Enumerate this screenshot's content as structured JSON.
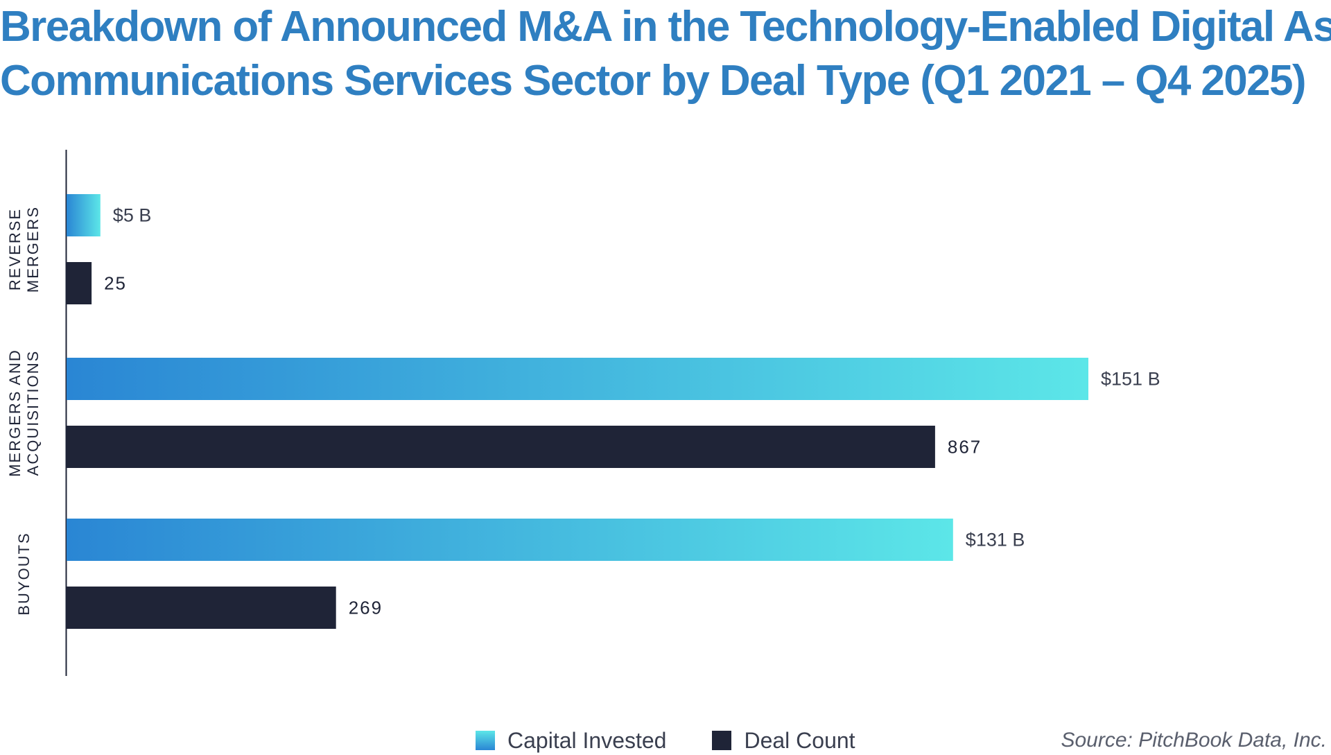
{
  "chart_data": {
    "type": "bar",
    "orientation": "horizontal",
    "title": "Breakdown of Announced M&A in the Technology-Enabled Digital Asset Communications Services Sector by Deal Type (Q1 2021 – Q4 2025)",
    "title_lines": [
      "Breakdown of Announced M&A in the Technology-Enabled Digital Asset",
      "Communications Services Sector by Deal Type (Q1 2021 – Q4 2025)"
    ],
    "categories": [
      {
        "lines": [
          "REVERSE",
          "MERGERS"
        ]
      },
      {
        "lines": [
          "MERGERS AND",
          "ACQUISITIONS"
        ]
      },
      {
        "lines": [
          "BUYOUTS"
        ]
      }
    ],
    "series": [
      {
        "name": "Capital Invested",
        "values": [
          5,
          151,
          131
        ],
        "labels": [
          "$5 B",
          "$151 B",
          "$131 B"
        ],
        "unit": "$B",
        "max": 151
      },
      {
        "name": "Deal Count",
        "values": [
          25,
          867,
          269
        ],
        "labels": [
          "25",
          "867",
          "269"
        ],
        "unit": "deals",
        "max": 1020
      }
    ],
    "xlabel": "",
    "ylabel": "",
    "legend_position": "bottom",
    "source": "Source: PitchBook Data, Inc."
  },
  "colors": {
    "title": "#2f7fc1",
    "capital_start": "#2a86d4",
    "capital_end": "#5ce6e8",
    "deal_count": "#1f2437",
    "axis": "#1f2437"
  }
}
